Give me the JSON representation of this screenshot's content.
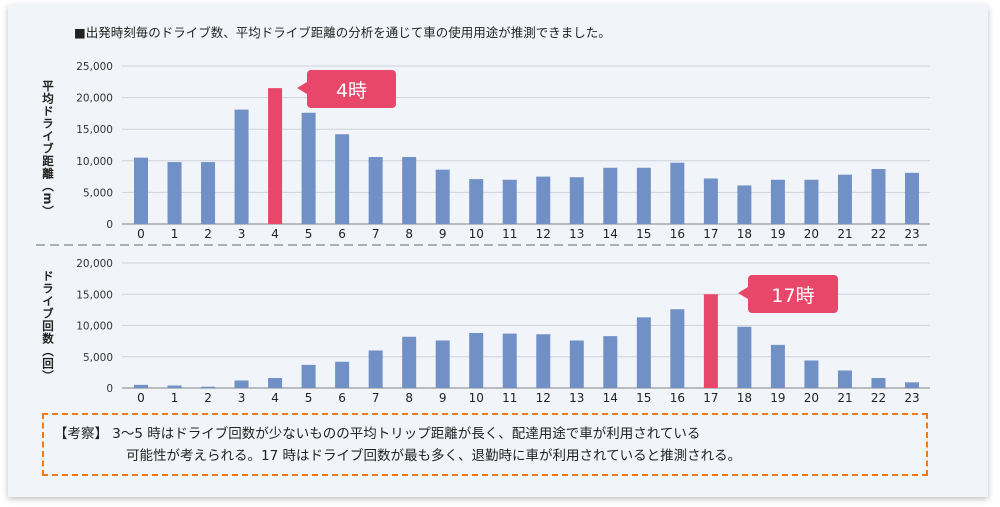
{
  "title": "■出発時刻毎のドライブ数、平均ドライブ距離の分析を通じて車の使用用途が推測できました。",
  "chart_data": [
    {
      "type": "bar",
      "ylabel": "平均ドライブ距離（m）",
      "categories": [
        "0",
        "1",
        "2",
        "3",
        "4",
        "5",
        "6",
        "7",
        "8",
        "9",
        "10",
        "11",
        "12",
        "13",
        "14",
        "15",
        "16",
        "17",
        "18",
        "19",
        "20",
        "21",
        "22",
        "23"
      ],
      "values": [
        10500,
        9800,
        9800,
        18100,
        21500,
        17600,
        14200,
        10600,
        10600,
        8600,
        7100,
        7000,
        7500,
        7400,
        8900,
        8900,
        9700,
        7200,
        6100,
        7000,
        7000,
        7800,
        8700,
        8100
      ],
      "ylim": [
        0,
        25000
      ],
      "yticks": [
        "0",
        "5,000",
        "10,000",
        "15,000",
        "20,000",
        "25,000"
      ],
      "highlight_index": 4,
      "annotation": "4時",
      "grid": true
    },
    {
      "type": "bar",
      "ylabel": "ドライブ回数（回）",
      "categories": [
        "0",
        "1",
        "2",
        "3",
        "4",
        "5",
        "6",
        "7",
        "8",
        "9",
        "10",
        "11",
        "12",
        "13",
        "14",
        "15",
        "16",
        "17",
        "18",
        "19",
        "20",
        "21",
        "22",
        "23"
      ],
      "values": [
        500,
        400,
        200,
        1200,
        1600,
        3700,
        4200,
        6000,
        8200,
        7600,
        8800,
        8700,
        8600,
        7600,
        8300,
        11300,
        12600,
        15000,
        9800,
        6900,
        4400,
        2800,
        1600,
        900
      ],
      "ylim": [
        0,
        20000
      ],
      "yticks": [
        "0",
        "5,000",
        "10,000",
        "15,000",
        "20,000"
      ],
      "highlight_index": 17,
      "annotation": "17時",
      "grid": true
    }
  ],
  "colors": {
    "bar": "#7090c6",
    "highlight": "#e8476a",
    "note_border": "#ee7a1a"
  },
  "note": {
    "line1": "【考察】 3〜5 時はドライブ回数が少ないものの平均トリップ距離が長く、配達用途で車が利用されている",
    "line2": "可能性が考えられる。17 時はドライブ回数が最も多く、退勤時に車が利用されていると推測される。"
  }
}
